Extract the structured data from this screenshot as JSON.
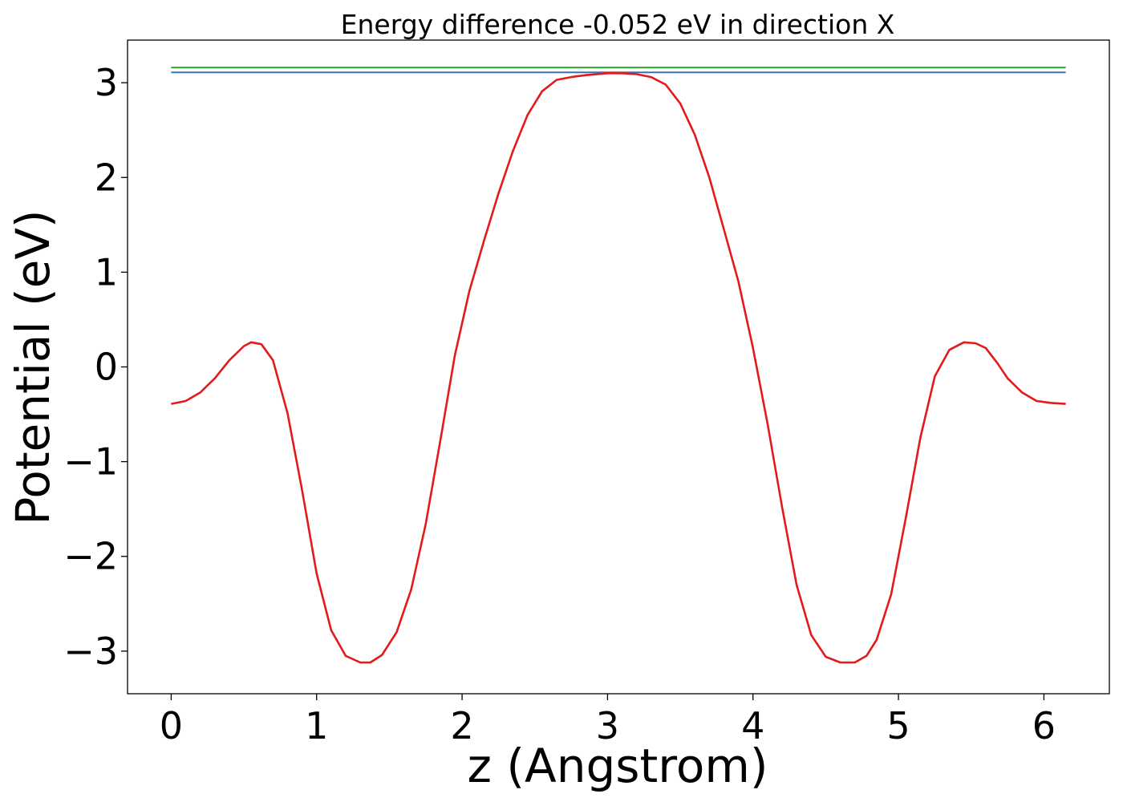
{
  "chart_data": {
    "type": "line",
    "title": "Energy difference -0.052 eV in direction X",
    "xlabel": "z (Angstrom)",
    "ylabel": "Potential (eV)",
    "xlim": [
      -0.3,
      6.45
    ],
    "ylim": [
      -3.45,
      3.45
    ],
    "xticks": [
      0,
      1,
      2,
      3,
      4,
      5,
      6
    ],
    "xtick_labels": [
      "0",
      "1",
      "2",
      "3",
      "4",
      "5",
      "6"
    ],
    "yticks": [
      -3,
      -2,
      -1,
      0,
      1,
      2,
      3
    ],
    "ytick_labels": [
      "−3",
      "−2",
      "−1",
      "0",
      "1",
      "2",
      "3"
    ],
    "grid": false,
    "series": [
      {
        "color": "#2ca02c",
        "x": [
          0,
          6.15
        ],
        "y": [
          3.16,
          3.16
        ]
      },
      {
        "color": "#3b6fb6",
        "x": [
          0,
          6.15
        ],
        "y": [
          3.11,
          3.11
        ]
      },
      {
        "color": "#e31a1c",
        "x": [
          0,
          0.1,
          0.2,
          0.3,
          0.4,
          0.5,
          0.55,
          0.62,
          0.7,
          0.8,
          0.9,
          1.0,
          1.1,
          1.2,
          1.3,
          1.37,
          1.45,
          1.55,
          1.65,
          1.75,
          1.85,
          1.95,
          2.05,
          2.15,
          2.25,
          2.35,
          2.45,
          2.55,
          2.65,
          2.75,
          2.85,
          3.0,
          3.1,
          3.2,
          3.3,
          3.4,
          3.5,
          3.6,
          3.7,
          3.8,
          3.9,
          4.0,
          4.1,
          4.2,
          4.3,
          4.4,
          4.5,
          4.6,
          4.7,
          4.78,
          4.85,
          4.95,
          5.05,
          5.15,
          5.25,
          5.35,
          5.45,
          5.53,
          5.6,
          5.68,
          5.75,
          5.85,
          5.95,
          6.05,
          6.15
        ],
        "y": [
          -0.39,
          -0.36,
          -0.27,
          -0.12,
          0.07,
          0.22,
          0.26,
          0.24,
          0.07,
          -0.49,
          -1.3,
          -2.18,
          -2.78,
          -3.05,
          -3.12,
          -3.12,
          -3.04,
          -2.8,
          -2.35,
          -1.66,
          -0.78,
          0.12,
          0.8,
          1.33,
          1.83,
          2.28,
          2.66,
          2.91,
          3.03,
          3.06,
          3.08,
          3.1,
          3.1,
          3.09,
          3.06,
          2.98,
          2.78,
          2.45,
          2.0,
          1.45,
          0.9,
          0.2,
          -0.6,
          -1.48,
          -2.3,
          -2.83,
          -3.06,
          -3.12,
          -3.12,
          -3.05,
          -2.88,
          -2.4,
          -1.6,
          -0.75,
          -0.1,
          0.18,
          0.26,
          0.25,
          0.2,
          0.04,
          -0.12,
          -0.27,
          -0.36,
          -0.38,
          -0.39
        ]
      }
    ]
  }
}
